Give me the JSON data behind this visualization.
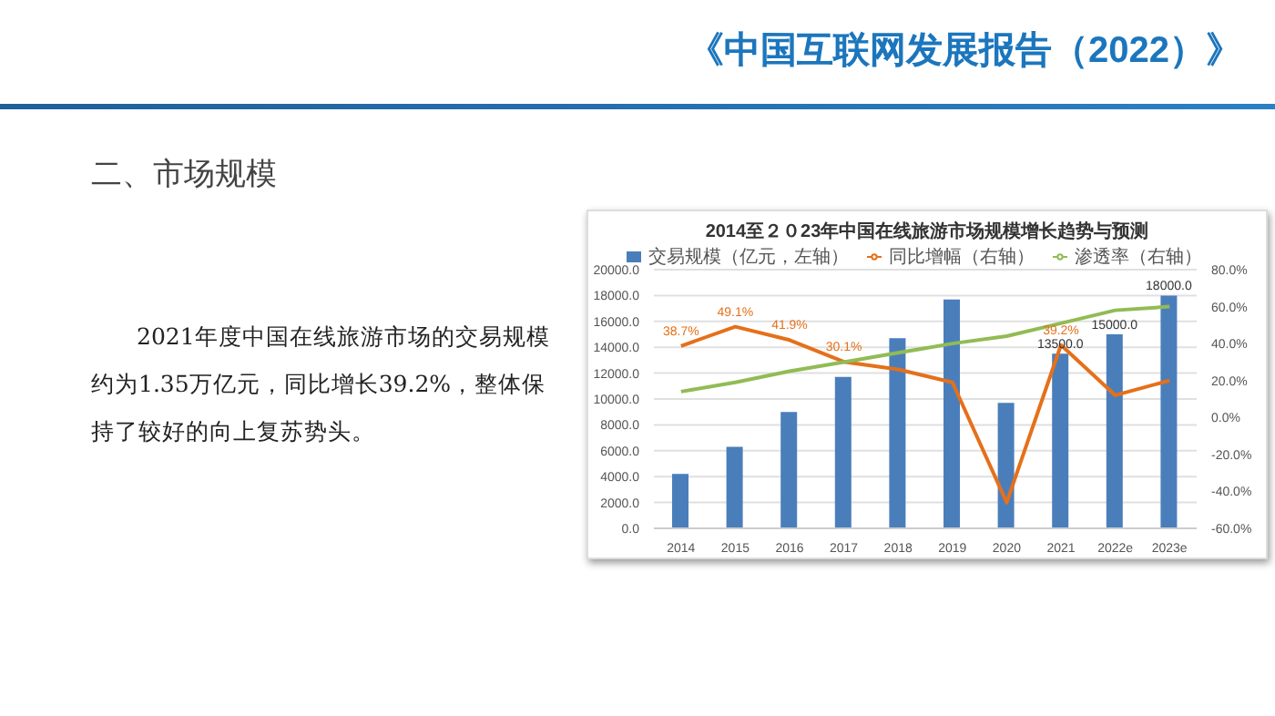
{
  "chart_data": {
    "type": "bar",
    "title": "2014至２０23年中国在线旅游市场规模增长趋势与预测",
    "annotations": [
      "《中国互联网发展报告（2022）》",
      "二、市场规模",
      "2021年度中国在线旅游市场的交易规模约为1.35万亿元，同比增长39.2%，整体保持了较好的向上复苏势头。"
    ],
    "categories": [
      "2014",
      "2015",
      "2016",
      "2017",
      "2018",
      "2019",
      "2020",
      "2021",
      "2022e",
      "2023e"
    ],
    "series": [
      {
        "name": "交易规模（亿元，左轴）",
        "color": "#4a7ebb",
        "values": [
          4200,
          6300,
          9000,
          11700,
          14700,
          17700,
          9700,
          13500,
          15000,
          18000
        ],
        "value_labels": [
          null,
          null,
          null,
          null,
          null,
          null,
          null,
          "13500.0",
          "15000.0",
          "18000.0"
        ]
      },
      {
        "name": "同比增幅（右轴）",
        "type": "line",
        "axis": "y2",
        "color": "#e5701a",
        "values": [
          38.7,
          49.1,
          41.9,
          30.1,
          26,
          19,
          -46,
          39.2,
          12,
          20
        ],
        "value_labels": [
          "38.7%",
          "49.1%",
          "41.9%",
          "30.1%",
          null,
          null,
          null,
          "39.2%",
          null,
          null
        ]
      },
      {
        "name": "渗透率（右轴）",
        "type": "line",
        "axis": "y2",
        "color": "#92bb55",
        "values": [
          14,
          19,
          25,
          30,
          35,
          40,
          44,
          51,
          58,
          60
        ]
      }
    ],
    "ylim": [
      0,
      20000
    ],
    "yticks": [
      {
        "value": 0,
        "label": "0.0"
      },
      {
        "value": 2000,
        "label": "2000.0"
      },
      {
        "value": 4000,
        "label": "4000.0"
      },
      {
        "value": 6000,
        "label": "6000.0"
      },
      {
        "value": 8000,
        "label": "8000.0"
      },
      {
        "value": 10000,
        "label": "10000.0"
      },
      {
        "value": 12000,
        "label": "12000.0"
      },
      {
        "value": 14000,
        "label": "14000.0"
      },
      {
        "value": 16000,
        "label": "16000.0"
      },
      {
        "value": 18000,
        "label": "18000.0"
      },
      {
        "value": 20000,
        "label": "20000.0"
      }
    ],
    "y2lim": [
      -60,
      80
    ],
    "y2ticks": [
      {
        "value": -60,
        "label": "-60.0%"
      },
      {
        "value": -40,
        "label": "-40.0%"
      },
      {
        "value": -20,
        "label": "-20.0%"
      },
      {
        "value": 0,
        "label": "0.0%"
      },
      {
        "value": 20,
        "label": "20.0%"
      },
      {
        "value": 40,
        "label": "40.0%"
      },
      {
        "value": 60,
        "label": "60.0%"
      },
      {
        "value": 80,
        "label": "80.0%"
      }
    ],
    "grid": "y",
    "legend": "top",
    "marker": "none",
    "line_style": "solid"
  }
}
